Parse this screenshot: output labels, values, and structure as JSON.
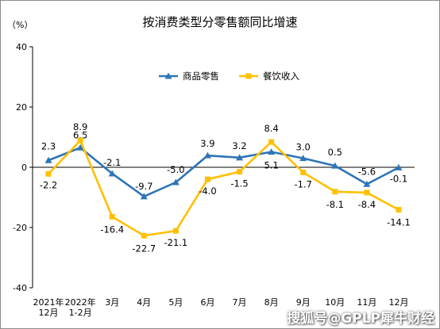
{
  "chart_data": {
    "type": "line",
    "title": "按消费类型分零售额同比增速",
    "ylabel": "（%）",
    "ylim": [
      -40,
      40
    ],
    "yticks": [
      40,
      20,
      0,
      -20,
      -40
    ],
    "categories": [
      [
        "2021年",
        "12月"
      ],
      [
        "2022年",
        "1-2月"
      ],
      [
        "3月"
      ],
      [
        "4月"
      ],
      [
        "5月"
      ],
      [
        "6月"
      ],
      [
        "7月"
      ],
      [
        "8月"
      ],
      [
        "9月"
      ],
      [
        "10月"
      ],
      [
        "11月"
      ],
      [
        "12月"
      ]
    ],
    "series": [
      {
        "name": "商品零售",
        "color": "#2e75b6",
        "marker": "triangle",
        "values": [
          2.3,
          6.5,
          -2.1,
          -9.7,
          -5.0,
          3.9,
          3.2,
          5.1,
          3.0,
          0.5,
          -5.6,
          -0.1
        ],
        "labels": [
          "2.3",
          "6.5",
          "-2.1",
          "-9.7",
          "-5.0",
          "3.9",
          "3.2",
          "5.1",
          "3.0",
          "0.5",
          "-5.6",
          "-0.1"
        ]
      },
      {
        "name": "餐饮收入",
        "color": "#ffc000",
        "marker": "square",
        "values": [
          -2.2,
          8.9,
          -16.4,
          -22.7,
          -21.1,
          -4.0,
          -1.5,
          8.4,
          -1.7,
          -8.1,
          -8.4,
          -14.1
        ],
        "labels": [
          "-2.2",
          "8.9",
          "-16.4",
          "-22.7",
          "-21.1",
          "-4.0",
          "-1.5",
          "8.4",
          "-1.7",
          "-8.1",
          "-8.4",
          "-14.1"
        ]
      }
    ],
    "legend_position": "top-center",
    "grid": false
  },
  "watermark": "搜狐号@GPLP犀牛财经"
}
